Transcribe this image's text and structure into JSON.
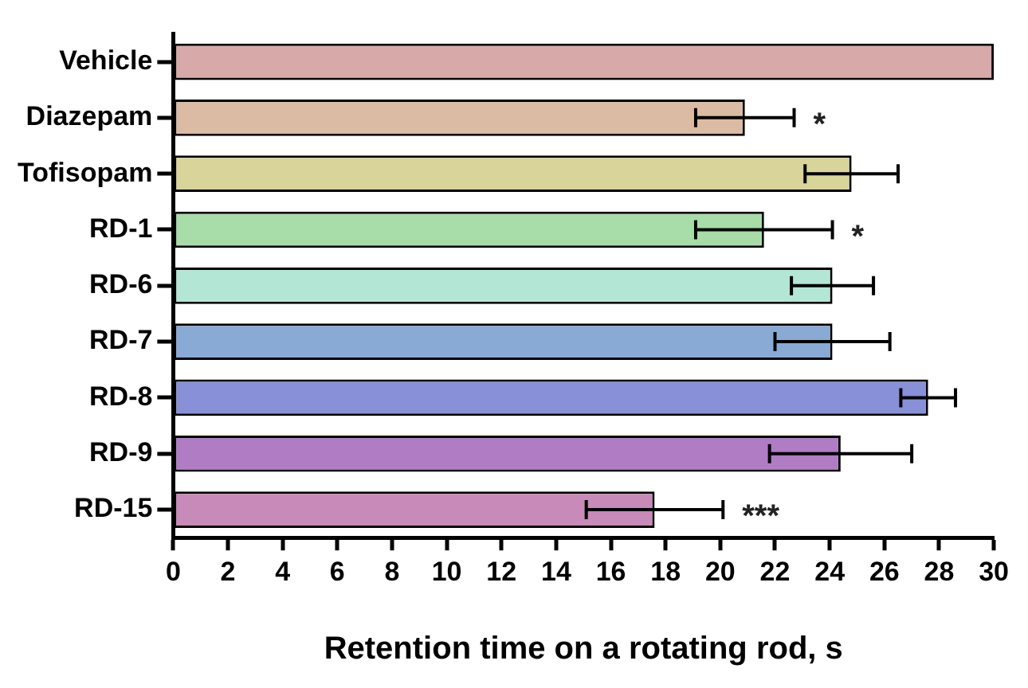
{
  "chart_data": {
    "type": "bar",
    "orientation": "horizontal",
    "xlabel": "Retention time on a rotating rod, s",
    "categories": [
      "Vehicle",
      "Diazepam",
      "Tofisopam",
      "RD-1",
      "RD-6",
      "RD-7",
      "RD-8",
      "RD-9",
      "RD-15"
    ],
    "values": [
      30,
      20.9,
      24.8,
      21.6,
      24.1,
      24.1,
      27.6,
      24.4,
      17.6
    ],
    "errors": [
      null,
      1.8,
      1.7,
      2.5,
      1.5,
      2.1,
      1,
      2.6,
      2.5
    ],
    "colors": [
      "#d8a9a9",
      "#dcbba4",
      "#d8d49a",
      "#a8dca8",
      "#b4e6d6",
      "#88aad4",
      "#8890d8",
      "#b07cc4",
      "#c88ab8"
    ],
    "xlim": [
      0,
      30
    ],
    "xticks": [
      0,
      2,
      4,
      6,
      8,
      10,
      12,
      14,
      16,
      18,
      20,
      22,
      24,
      26,
      28,
      30
    ],
    "grid": false,
    "annotations": [
      {
        "text": "*",
        "x": 22.7,
        "y": "Diazepam"
      },
      {
        "text": "*",
        "x": 24.1,
        "y": "RD-1"
      },
      {
        "text": "***",
        "x": 20.1,
        "y": "RD-15"
      }
    ]
  }
}
